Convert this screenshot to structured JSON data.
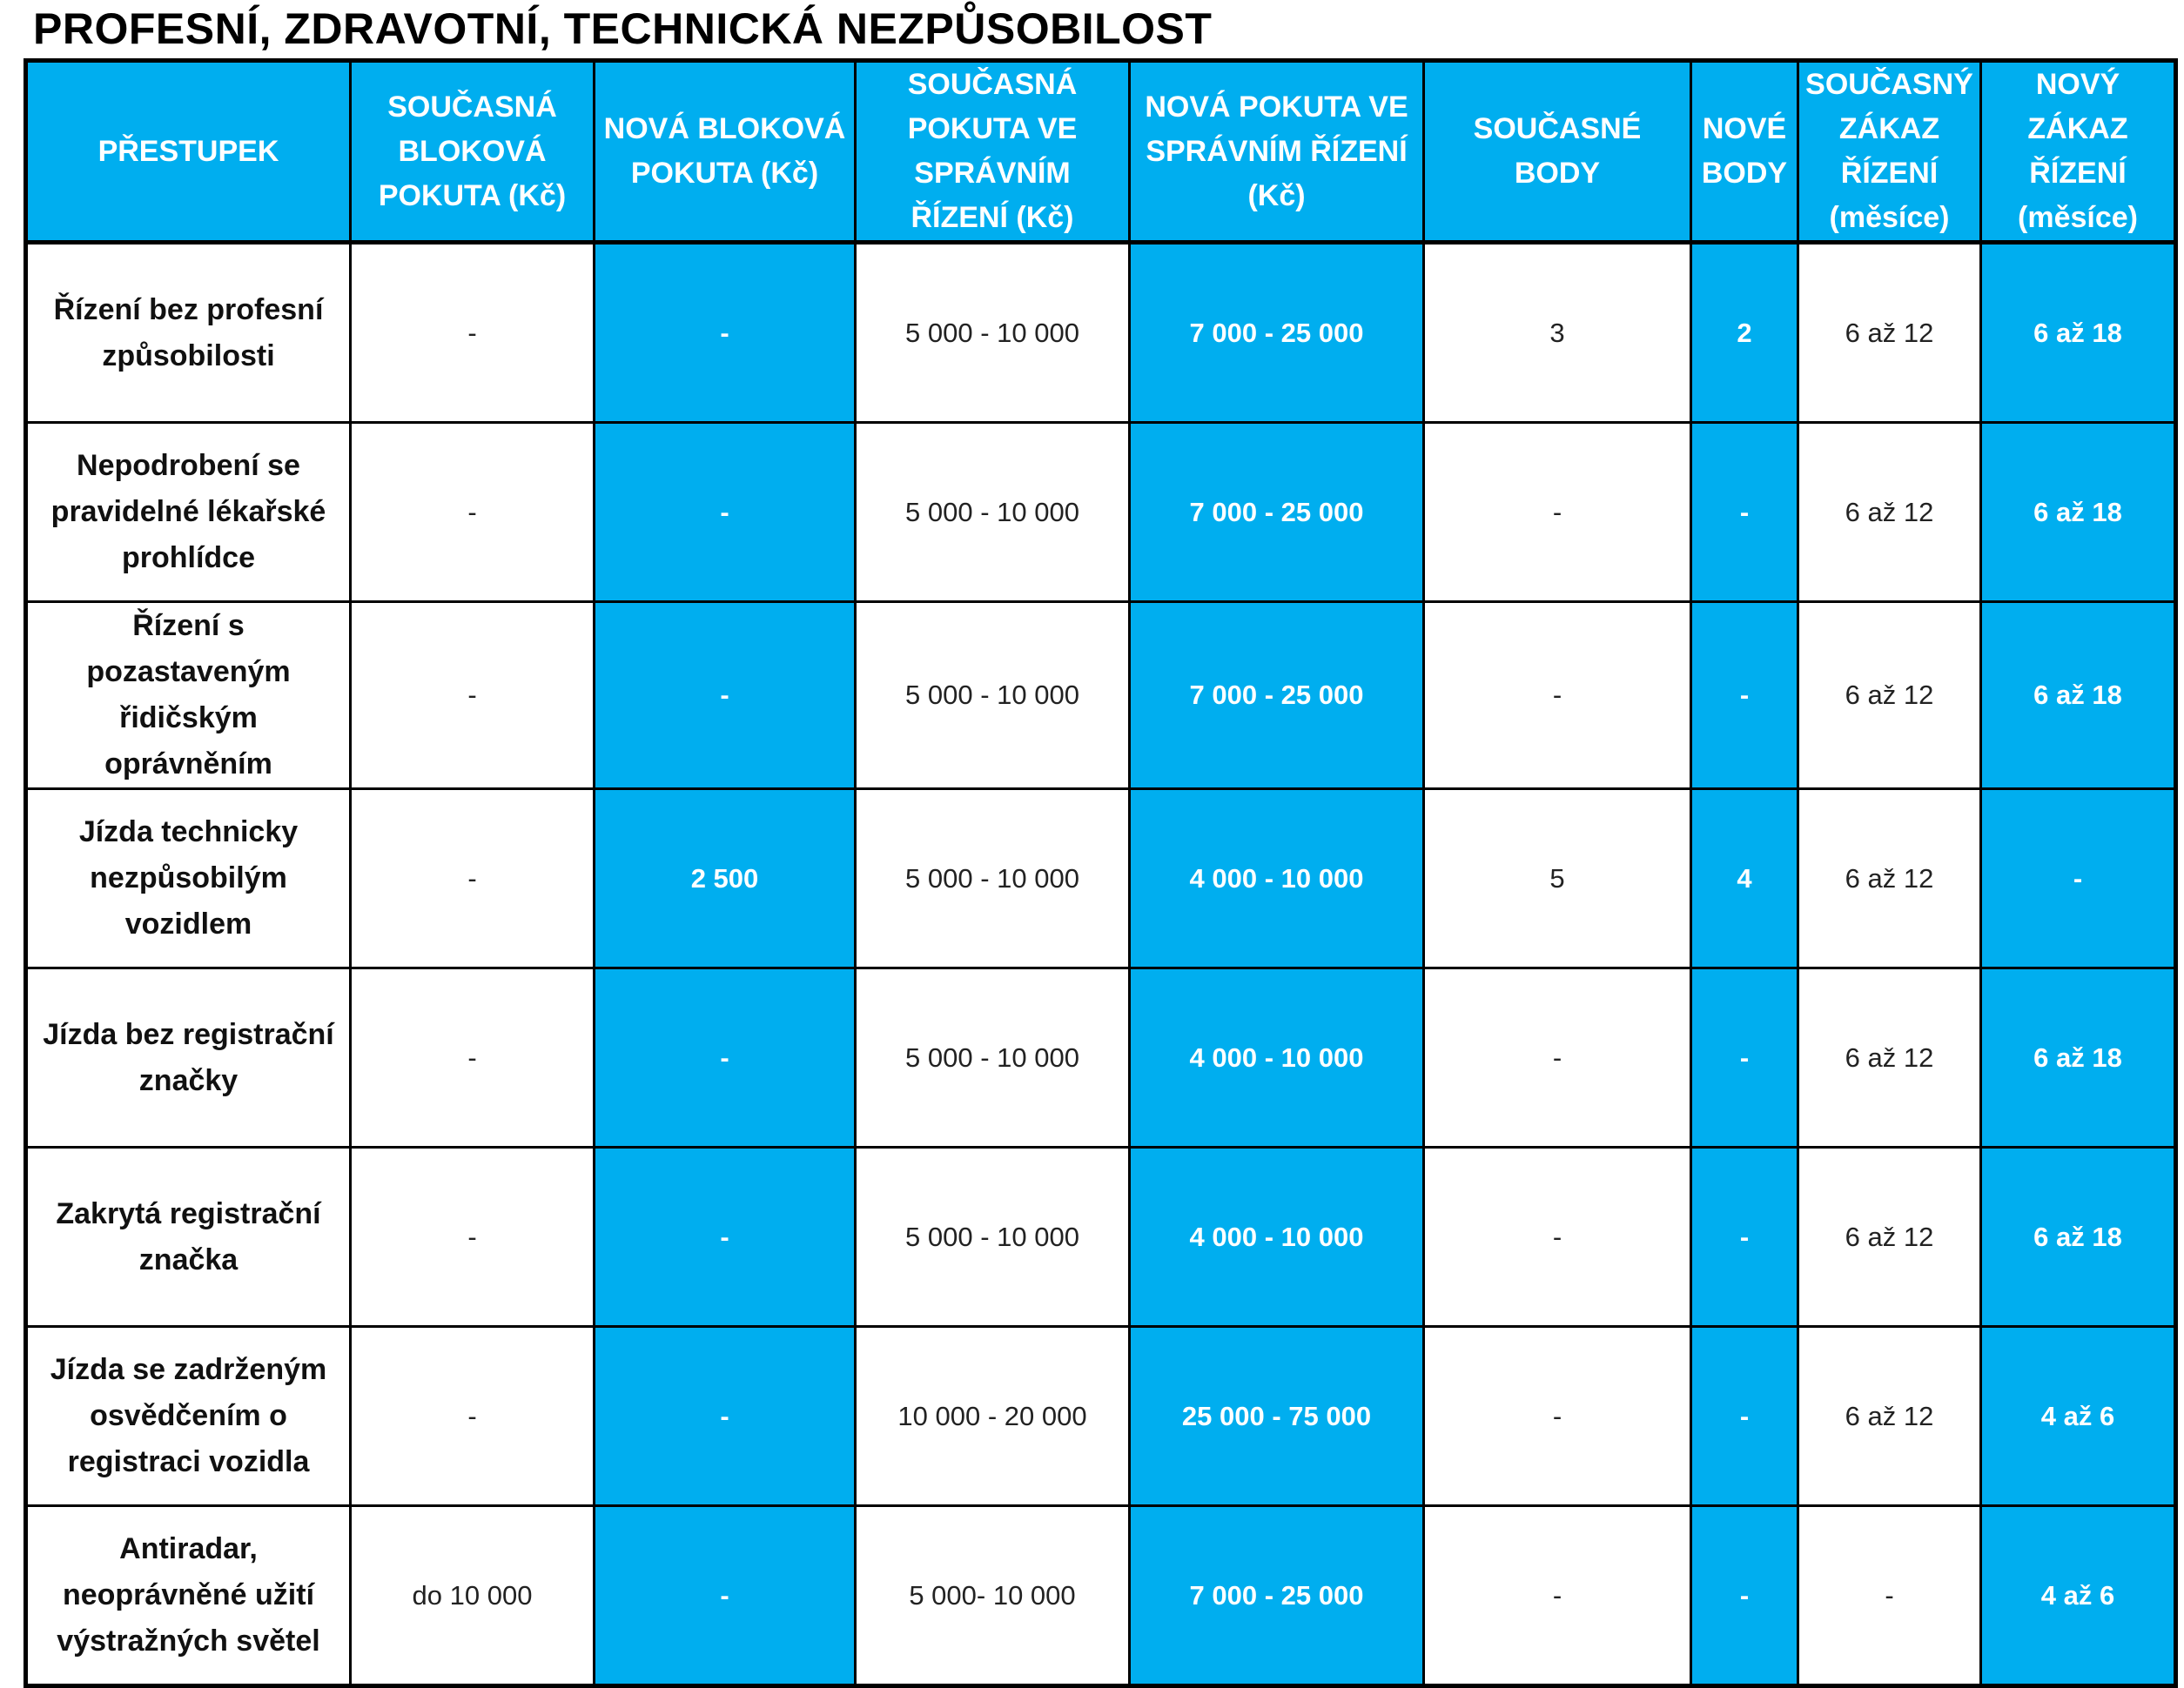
{
  "title": "PROFESNÍ, ZDRAVOTNÍ, TECHNICKÁ NEZPŮSOBILOST",
  "theme": {
    "accent": "#00aeef",
    "header_text": "#ffffff",
    "border": "#000000"
  },
  "headers": [
    "PŘESTUPEK",
    "SOUČASNÁ BLOKOVÁ POKUTA (Kč)",
    "NOVÁ BLOKOVÁ POKUTA (Kč)",
    "SOUČASNÁ POKUTA VE SPRÁVNÍM ŘÍZENÍ (Kč)",
    "NOVÁ POKUTA VE SPRÁVNÍM ŘÍZENÍ (Kč)",
    "SOUČASNÉ BODY",
    "NOVÉ BODY",
    "SOUČASNÝ ZÁKAZ ŘÍZENÍ (měsíce)",
    "NOVÝ ZÁKAZ ŘÍZENÍ (měsíce)"
  ],
  "rows": [
    [
      "Řízení bez profesní způsobilosti",
      "-",
      "-",
      "5 000 - 10 000",
      "7 000 - 25 000",
      "3",
      "2",
      "6 až 12",
      "6 až 18"
    ],
    [
      "Nepodrobení se pravidelné lékařské prohlídce",
      "-",
      "-",
      "5 000 - 10 000",
      "7 000 - 25 000",
      "-",
      "-",
      "6 až 12",
      "6 až 18"
    ],
    [
      "Řízení s pozastaveným řidičským oprávněním",
      "-",
      "-",
      "5 000 - 10 000",
      "7 000 - 25 000",
      "-",
      "-",
      "6 až 12",
      "6 až 18"
    ],
    [
      "Jízda technicky nezpůsobilým vozidlem",
      "-",
      "2 500",
      "5 000 - 10 000",
      "4 000 - 10 000",
      "5",
      "4",
      "6 až 12",
      "-"
    ],
    [
      "Jízda bez registrační značky",
      "-",
      "-",
      "5 000 - 10 000",
      "4 000 - 10 000",
      "-",
      "-",
      "6 až 12",
      "6 až 18"
    ],
    [
      "Zakrytá registrační značka",
      "-",
      "-",
      "5 000 - 10 000",
      "4 000 - 10 000",
      "-",
      "-",
      "6 až 12",
      "6 až 18"
    ],
    [
      "Jízda se zadrženým osvědčením o registraci vozidla",
      "-",
      "-",
      "10 000 - 20 000",
      "25 000 - 75 000",
      "-",
      "-",
      "6 až 12",
      "4 až 6"
    ],
    [
      "Antiradar, neoprávněné užití výstražných světel",
      "do 10 000",
      "-",
      "5 000- 10 000",
      "7 000 - 25 000",
      "-",
      "-",
      "-",
      "4 až 6"
    ]
  ]
}
